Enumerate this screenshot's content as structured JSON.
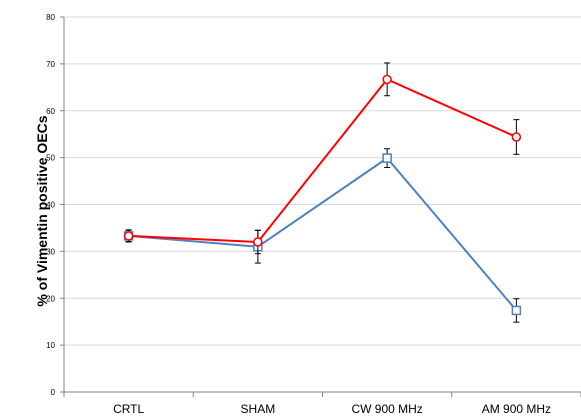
{
  "chart_data": {
    "type": "line",
    "title": "",
    "xlabel": "",
    "ylabel": "% of Vimentin positive OECs",
    "categories": [
      "CRTL",
      "SHAM",
      "CW 900 MHz",
      "AM 900 MHz"
    ],
    "ylim": [
      0,
      80
    ],
    "yticks": [
      0,
      10,
      20,
      30,
      40,
      50,
      60,
      70,
      80
    ],
    "grid": "horizontal",
    "legend": "none",
    "series": [
      {
        "values": [
          33.3,
          32.0,
          66.7,
          54.4
        ],
        "errors": [
          1.2,
          2.5,
          3.5,
          3.7
        ],
        "color": "#ff0000",
        "marker": "circle"
      },
      {
        "values": [
          33.3,
          31.0,
          49.9,
          17.4
        ],
        "errors": [
          1.3,
          3.5,
          2.0,
          2.5
        ],
        "color": "#4f81bd",
        "marker": "square"
      }
    ]
  }
}
